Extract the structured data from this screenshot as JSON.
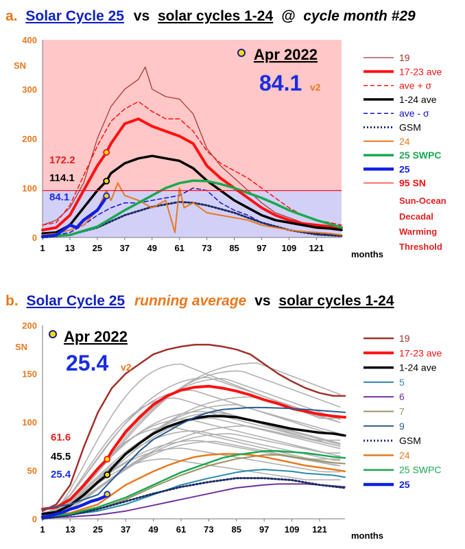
{
  "chart_data": [
    {
      "type": "line",
      "panel_letter": "a.",
      "title_parts": [
        "Solar Cycle 25",
        "vs",
        "solar cycles 1-24",
        "@",
        "cycle month #29"
      ],
      "date_label": "Apr 2022",
      "big_value": "84.1",
      "version": "v2",
      "ylabel": "SN",
      "xlabel": "months",
      "ylim": [
        0,
        400
      ],
      "xlim": [
        1,
        132
      ],
      "yticks": [
        0,
        100,
        200,
        300,
        400
      ],
      "xticks": [
        1,
        13,
        25,
        37,
        49,
        61,
        73,
        85,
        97,
        109,
        121
      ],
      "threshold": 95,
      "background": {
        "above": "#ffc7c7",
        "below": "#d3d0f8"
      },
      "value_labels": [
        {
          "text": "172.2",
          "color": "#e02020",
          "y": 172.2
        },
        {
          "text": "114.1",
          "color": "#000000",
          "y": 114.1
        },
        {
          "text": "84.1",
          "color": "#1a2de0",
          "y": 84.1
        }
      ],
      "legend": [
        {
          "label": "19",
          "color": "#a0302a",
          "style": "solid",
          "width": 1.2
        },
        {
          "label": "17-23 ave",
          "color": "#ff1010",
          "style": "solid",
          "width": 4
        },
        {
          "label": "ave + σ",
          "color": "#ff1010",
          "style": "dashed",
          "width": 1.5
        },
        {
          "label": "1-24 ave",
          "color": "#000000",
          "style": "solid",
          "width": 3.5
        },
        {
          "label": "ave - σ",
          "color": "#1010c0",
          "style": "dashed",
          "width": 1.5
        },
        {
          "label": "GSM",
          "color": "#1a2a60",
          "style": "dotted",
          "width": 3
        },
        {
          "label": "24",
          "color": "#e8781e",
          "style": "solid",
          "width": 2
        },
        {
          "label": "25 SWPC",
          "color": "#18a850",
          "style": "solid",
          "width": 3.5
        },
        {
          "label": "25",
          "color": "#1020e0",
          "style": "solid",
          "width": 4.5
        },
        {
          "label": "95 SN",
          "color": "#ff1010",
          "style": "solid",
          "width": 1.2
        }
      ],
      "annotation": [
        "Sun-Ocean",
        "Decadal",
        "Warming",
        "Threshold"
      ],
      "series": [
        {
          "name": "19",
          "x": [
            1,
            7,
            13,
            19,
            25,
            31,
            37,
            43,
            46,
            49,
            55,
            61,
            67,
            73,
            79,
            85,
            91,
            97,
            103,
            109,
            115,
            121,
            127,
            132
          ],
          "y": [
            25,
            35,
            60,
            110,
            200,
            265,
            300,
            320,
            345,
            300,
            285,
            280,
            250,
            180,
            145,
            120,
            95,
            70,
            50,
            40,
            30,
            25,
            20,
            25
          ]
        },
        {
          "name": "17-23 ave",
          "x": [
            1,
            7,
            13,
            19,
            25,
            29,
            31,
            37,
            43,
            49,
            55,
            61,
            67,
            73,
            79,
            85,
            91,
            97,
            103,
            109,
            115,
            121,
            127,
            132
          ],
          "y": [
            15,
            20,
            45,
            95,
            145,
            172,
            190,
            230,
            240,
            225,
            215,
            205,
            190,
            145,
            120,
            100,
            80,
            60,
            45,
            35,
            28,
            25,
            22,
            20
          ]
        },
        {
          "name": "ave + σ",
          "x": [
            1,
            7,
            13,
            19,
            25,
            31,
            37,
            43,
            49,
            55,
            61,
            67,
            73,
            79,
            85,
            91,
            97,
            103,
            109,
            115,
            121,
            127,
            132
          ],
          "y": [
            25,
            30,
            65,
            125,
            185,
            235,
            260,
            275,
            255,
            240,
            240,
            215,
            175,
            150,
            135,
            120,
            100,
            80,
            60,
            45,
            35,
            30,
            25
          ]
        },
        {
          "name": "1-24 ave",
          "x": [
            1,
            7,
            13,
            19,
            25,
            29,
            31,
            37,
            43,
            49,
            55,
            61,
            67,
            73,
            79,
            85,
            91,
            97,
            103,
            109,
            115,
            121,
            127,
            132
          ],
          "y": [
            8,
            10,
            25,
            60,
            95,
            114,
            130,
            150,
            160,
            165,
            160,
            155,
            140,
            115,
            95,
            75,
            60,
            45,
            35,
            30,
            25,
            20,
            18,
            15
          ]
        },
        {
          "name": "ave - σ",
          "x": [
            1,
            7,
            13,
            19,
            25,
            31,
            37,
            43,
            49,
            55,
            61,
            67,
            73,
            79,
            85,
            91,
            97,
            103,
            109,
            115,
            121,
            127,
            132
          ],
          "y": [
            3,
            5,
            10,
            25,
            45,
            60,
            70,
            70,
            75,
            80,
            85,
            100,
            95,
            70,
            55,
            45,
            30,
            20,
            15,
            10,
            8,
            6,
            5
          ]
        },
        {
          "name": "GSM",
          "x": [
            1,
            13,
            25,
            37,
            49,
            61,
            67,
            73,
            85,
            97,
            109,
            121,
            132
          ],
          "y": [
            0,
            5,
            20,
            45,
            62,
            72,
            70,
            65,
            50,
            30,
            15,
            6,
            3
          ]
        },
        {
          "name": "24",
          "x": [
            1,
            7,
            13,
            19,
            25,
            29,
            31,
            34,
            37,
            43,
            49,
            55,
            59,
            61,
            63,
            67,
            73,
            79,
            85,
            91,
            97,
            103,
            109,
            115,
            121,
            127,
            132
          ],
          "y": [
            5,
            8,
            15,
            25,
            55,
            95,
            75,
            110,
            85,
            75,
            60,
            75,
            10,
            100,
            60,
            70,
            50,
            45,
            40,
            35,
            25,
            20,
            15,
            12,
            10,
            8,
            5
          ]
        },
        {
          "name": "25 SWPC",
          "x": [
            1,
            13,
            25,
            37,
            49,
            55,
            61,
            67,
            73,
            79,
            85,
            91,
            97,
            103,
            109,
            115,
            121,
            127,
            132
          ],
          "y": [
            2,
            5,
            22,
            55,
            85,
            100,
            110,
            115,
            114,
            108,
            100,
            90,
            80,
            68,
            55,
            45,
            35,
            27,
            20
          ]
        },
        {
          "name": "25",
          "x": [
            1,
            4,
            7,
            10,
            13,
            16,
            19,
            22,
            25,
            28,
            29
          ],
          "y": [
            2,
            3,
            5,
            15,
            25,
            20,
            35,
            45,
            55,
            75,
            84.1
          ]
        }
      ]
    },
    {
      "type": "line",
      "panel_letter": "b.",
      "title_parts": [
        "Solar Cycle 25",
        "running average",
        "vs",
        "solar cycles 1-24"
      ],
      "date_label": "Apr 2022",
      "big_value": "25.4",
      "version": "v2",
      "ylabel": "SN",
      "xlabel": "months",
      "ylim": [
        0,
        200
      ],
      "xlim": [
        1,
        132
      ],
      "yticks": [
        0,
        50,
        100,
        150,
        200
      ],
      "xticks": [
        1,
        13,
        25,
        37,
        49,
        61,
        73,
        85,
        97,
        109,
        121
      ],
      "value_labels": [
        {
          "text": "61.6",
          "color": "#e02020",
          "y": 61.6
        },
        {
          "text": "45.5",
          "color": "#000000",
          "y": 45.5
        },
        {
          "text": "25.4",
          "color": "#1a2de0",
          "y": 25.4
        }
      ],
      "legend": [
        {
          "label": "19",
          "color": "#a0302a",
          "style": "solid",
          "width": 2.5
        },
        {
          "label": "17-23 ave",
          "color": "#ff1010",
          "style": "solid",
          "width": 4
        },
        {
          "label": "1-24 ave",
          "color": "#000000",
          "style": "solid",
          "width": 3.5
        },
        {
          "label": "5",
          "color": "#2a8aa8",
          "style": "solid",
          "width": 2
        },
        {
          "label": "6",
          "color": "#7030a0",
          "style": "solid",
          "width": 2
        },
        {
          "label": "7",
          "color": "#9a9060",
          "style": "solid",
          "width": 2
        },
        {
          "label": "9",
          "color": "#2a5a90",
          "style": "solid",
          "width": 2
        },
        {
          "label": "GSM",
          "color": "#1a2a60",
          "style": "dotted",
          "width": 3
        },
        {
          "label": "24",
          "color": "#e8781e",
          "style": "solid",
          "width": 2.5
        },
        {
          "label": "25 SWPC",
          "color": "#18a850",
          "style": "solid",
          "width": 2.5
        },
        {
          "label": "25",
          "color": "#1020e0",
          "style": "solid",
          "width": 4.5
        }
      ],
      "series": [
        {
          "name": "19",
          "x": [
            1,
            7,
            13,
            19,
            25,
            31,
            37,
            43,
            49,
            55,
            61,
            67,
            73,
            79,
            85,
            91,
            97,
            103,
            109,
            115,
            121,
            127,
            132
          ],
          "y": [
            8,
            15,
            35,
            75,
            110,
            135,
            150,
            160,
            170,
            175,
            178,
            180,
            180,
            178,
            175,
            170,
            160,
            150,
            142,
            135,
            130,
            127,
            127
          ]
        },
        {
          "name": "17-23 ave",
          "x": [
            1,
            7,
            13,
            19,
            25,
            29,
            31,
            37,
            43,
            49,
            55,
            61,
            67,
            73,
            79,
            85,
            91,
            97,
            103,
            109,
            115,
            121,
            127,
            132
          ],
          "y": [
            10,
            12,
            20,
            35,
            52,
            61.6,
            70,
            90,
            105,
            118,
            127,
            133,
            136,
            137,
            135,
            132,
            128,
            123,
            119,
            114,
            111,
            108,
            106,
            105
          ]
        },
        {
          "name": "1-24 ave",
          "x": [
            1,
            7,
            13,
            19,
            25,
            29,
            31,
            37,
            43,
            49,
            55,
            61,
            67,
            73,
            79,
            85,
            91,
            97,
            103,
            109,
            115,
            121,
            127,
            132
          ],
          "y": [
            5,
            7,
            14,
            25,
            38,
            45.5,
            52,
            67,
            78,
            88,
            95,
            100,
            104,
            106,
            106,
            105,
            102,
            99,
            96,
            93,
            91,
            89,
            88,
            86
          ]
        },
        {
          "name": "5",
          "x": [
            1,
            13,
            25,
            37,
            49,
            61,
            73,
            85,
            91,
            97,
            103,
            109,
            115,
            121,
            127,
            132
          ],
          "y": [
            2,
            4,
            8,
            15,
            25,
            35,
            42,
            48,
            50,
            51,
            50,
            49,
            47,
            46,
            45,
            43
          ]
        },
        {
          "name": "6",
          "x": [
            1,
            13,
            25,
            37,
            49,
            61,
            73,
            85,
            97,
            103,
            109,
            115,
            121,
            127,
            132
          ],
          "y": [
            1,
            2,
            4,
            8,
            14,
            20,
            26,
            32,
            35,
            36,
            36,
            36,
            35,
            34,
            33
          ]
        },
        {
          "name": "7",
          "x": [
            1,
            13,
            25,
            37,
            49,
            61,
            73,
            85,
            97,
            103,
            109,
            115,
            121,
            127,
            132
          ],
          "y": [
            3,
            5,
            10,
            20,
            33,
            45,
            55,
            62,
            66,
            66,
            64,
            62,
            60,
            58,
            57
          ]
        },
        {
          "name": "9",
          "x": [
            1,
            13,
            25,
            31,
            37,
            43,
            49,
            55,
            61,
            67,
            73,
            79,
            85,
            91,
            97,
            109,
            121,
            132
          ],
          "y": [
            10,
            15,
            25,
            40,
            55,
            70,
            82,
            90,
            98,
            105,
            110,
            113,
            114,
            115,
            115,
            114,
            112,
            110
          ]
        },
        {
          "name": "GSM",
          "x": [
            1,
            13,
            25,
            37,
            49,
            61,
            73,
            85,
            97,
            109,
            121,
            132
          ],
          "y": [
            0,
            4,
            10,
            18,
            26,
            33,
            38,
            42,
            42,
            40,
            35,
            32
          ]
        },
        {
          "name": "24",
          "x": [
            1,
            13,
            25,
            31,
            37,
            43,
            49,
            55,
            61,
            67,
            73,
            79,
            85,
            91,
            97,
            103,
            109,
            115,
            121,
            127,
            132
          ],
          "y": [
            3,
            6,
            15,
            25,
            35,
            42,
            49,
            55,
            60,
            64,
            66,
            67,
            67,
            66,
            64,
            61,
            58,
            55,
            53,
            51,
            49
          ]
        },
        {
          "name": "25 SWPC",
          "x": [
            1,
            13,
            25,
            37,
            49,
            61,
            73,
            79,
            85,
            91,
            97,
            103,
            109,
            115,
            121,
            127,
            132
          ],
          "y": [
            2,
            5,
            12,
            22,
            35,
            48,
            58,
            63,
            66,
            68,
            70,
            70,
            69,
            68,
            66,
            64,
            63
          ]
        },
        {
          "name": "25",
          "x": [
            1,
            4,
            7,
            10,
            13,
            16,
            19,
            22,
            25,
            28,
            29
          ],
          "y": [
            2,
            3,
            5,
            7,
            10,
            12,
            15,
            18,
            20,
            23,
            25.4
          ]
        }
      ]
    }
  ],
  "colors": {
    "title_blue": "#1020c0",
    "panel_orange": "#e8781e",
    "axis_orange": "#e8781e",
    "big_blue": "#1a2de0"
  }
}
